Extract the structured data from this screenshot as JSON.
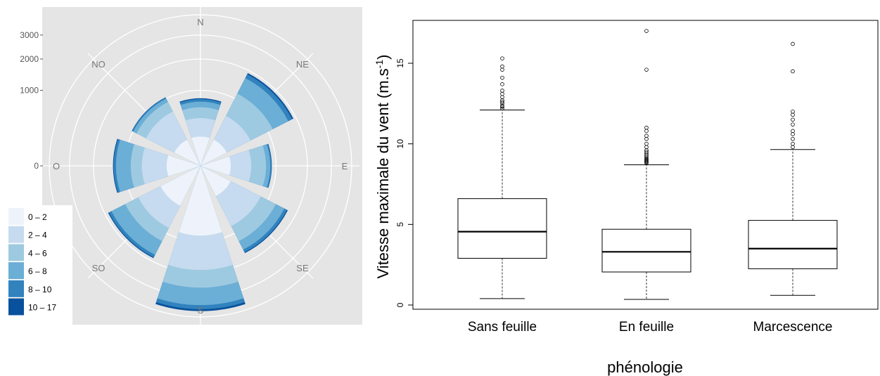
{
  "chart_data": [
    {
      "type": "wind-rose",
      "directions": [
        "N",
        "NE",
        "E",
        "SE",
        "S",
        "SO",
        "O",
        "NO"
      ],
      "radial_ticks": [
        "0",
        "1000",
        "2000",
        "3000"
      ],
      "radial_max": 4500,
      "grid": true,
      "legend_position": "bottom-left",
      "speed_classes": [
        {
          "label": "0 – 2",
          "color": "#eef3fb"
        },
        {
          "label": "2 – 4",
          "color": "#c6dbef"
        },
        {
          "label": "4 – 6",
          "color": "#9ecae1"
        },
        {
          "label": "6 – 8",
          "color": "#6baed6"
        },
        {
          "label": "8 – 10",
          "color": "#3182bd"
        },
        {
          "label": "10 – 17",
          "color": "#08519c"
        }
      ],
      "cumulative_counts": [
        [
          150,
          400,
          600,
          720,
          780,
          800
        ],
        [
          150,
          550,
          1150,
          1700,
          1850,
          1900
        ],
        [
          160,
          450,
          750,
          850,
          880,
          890
        ],
        [
          200,
          800,
          1250,
          1550,
          1650,
          1680
        ],
        [
          850,
          1900,
          2600,
          3400,
          3600,
          3700
        ],
        [
          350,
          850,
          1250,
          1750,
          1850,
          1880
        ],
        [
          200,
          600,
          850,
          1250,
          1320,
          1340
        ],
        [
          150,
          650,
          900,
          1000,
          1030,
          1040
        ]
      ]
    },
    {
      "type": "boxplot",
      "ylabel_main": "Vitesse maximale du vent (m.s",
      "ylabel_sup": "-1",
      "ylabel_end": ")",
      "xlabel": "phénologie",
      "ylim": [
        0,
        17.5
      ],
      "yticks": [
        "0",
        "5",
        "10",
        "15"
      ],
      "categories": [
        "Sans feuille",
        "En feuille",
        "Marcescence"
      ],
      "boxes": [
        {
          "min": 0.4,
          "q1": 2.9,
          "median": 4.55,
          "q3": 6.6,
          "max": 12.1,
          "outliers": [
            12.2,
            12.3,
            12.35,
            12.5,
            12.6,
            12.7,
            12.9,
            13.1,
            13.3,
            13.7,
            14.1,
            14.6,
            14.8,
            15.3
          ]
        },
        {
          "min": 0.35,
          "q1": 2.05,
          "median": 3.3,
          "q3": 4.7,
          "max": 8.7,
          "outliers": [
            8.8,
            8.85,
            8.9,
            8.95,
            9.0,
            9.05,
            9.1,
            9.2,
            9.3,
            9.4,
            9.5,
            9.6,
            9.8,
            10.0,
            10.3,
            10.5,
            10.8,
            11.0,
            14.6,
            17.0
          ]
        },
        {
          "min": 0.6,
          "q1": 2.25,
          "median": 3.5,
          "q3": 5.25,
          "max": 9.65,
          "outliers": [
            9.8,
            10.0,
            10.3,
            10.6,
            10.8,
            11.2,
            11.5,
            11.8,
            12.0,
            14.5,
            16.2
          ]
        }
      ]
    }
  ]
}
